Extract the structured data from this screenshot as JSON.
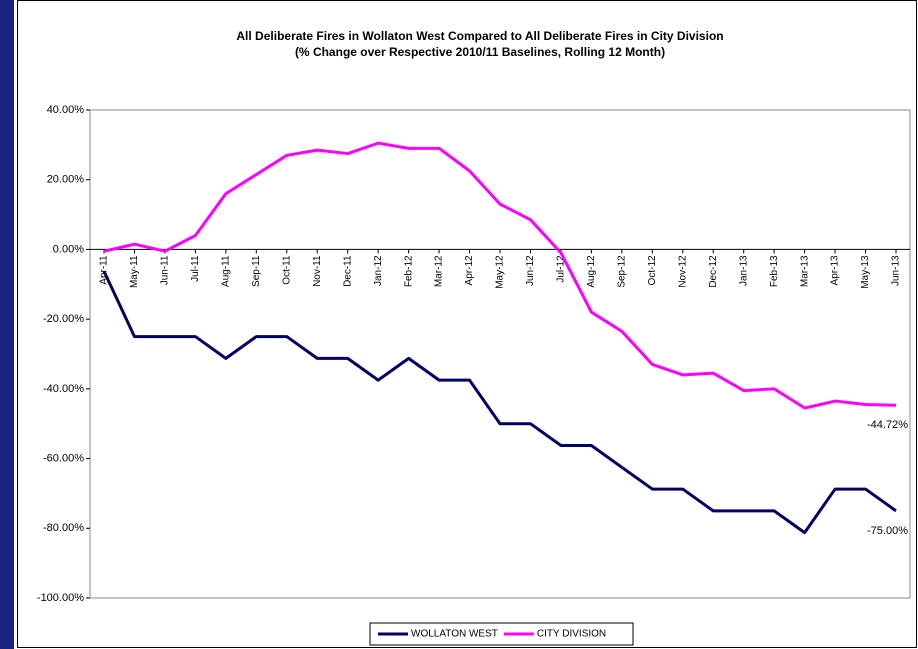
{
  "chart_data": {
    "type": "line",
    "title": "All Deliberate Fires in Wollaton West Compared to All Deliberate Fires in City Division",
    "subtitle": "(% Change over Respective 2010/11 Baselines, Rolling 12 Month)",
    "categories": [
      "Apr-11",
      "May-11",
      "Jun-11",
      "Jul-11",
      "Aug-11",
      "Sep-11",
      "Oct-11",
      "Nov-11",
      "Dec-11",
      "Jan-12",
      "Feb-12",
      "Mar-12",
      "Apr-12",
      "May-12",
      "Jun-12",
      "Jul-12",
      "Aug-12",
      "Sep-12",
      "Oct-12",
      "Nov-12",
      "Dec-12",
      "Jan-13",
      "Feb-13",
      "Mar-13",
      "Apr-13",
      "May-13",
      "Jun-13"
    ],
    "series": [
      {
        "name": "WOLLATON WEST",
        "color": "#000066",
        "values": [
          -6.25,
          -25,
          -25,
          -25,
          -31.25,
          -25,
          -25,
          -31.25,
          -31.25,
          -37.5,
          -31.25,
          -37.5,
          -37.5,
          -50,
          -50,
          -56.25,
          -56.25,
          -62.5,
          -68.75,
          -68.75,
          -75,
          -75,
          -75,
          -81.25,
          -68.75,
          -68.75,
          -75
        ],
        "value_labels": [
          null,
          null,
          null,
          null,
          null,
          null,
          null,
          null,
          null,
          null,
          null,
          null,
          null,
          null,
          null,
          null,
          null,
          null,
          null,
          null,
          null,
          null,
          null,
          null,
          null,
          null,
          "-75.00%"
        ]
      },
      {
        "name": "CITY DIVISION",
        "color": "#ff00ff",
        "values": [
          -0.5,
          1.5,
          -0.5,
          4,
          16,
          21.5,
          27,
          28.5,
          27.5,
          30.5,
          29,
          29,
          22.5,
          13,
          8.5,
          -1,
          -18,
          -23.5,
          -33,
          -36,
          -35.5,
          -40.5,
          -40,
          -45.5,
          -43.5,
          -44.5,
          -44.72
        ],
        "value_labels": [
          null,
          null,
          null,
          null,
          null,
          null,
          null,
          null,
          null,
          null,
          null,
          null,
          null,
          null,
          null,
          null,
          null,
          null,
          null,
          null,
          null,
          null,
          null,
          null,
          null,
          null,
          "-44.72%"
        ]
      }
    ],
    "ylim": [
      -100,
      40
    ],
    "yticks": [
      {
        "value": 40,
        "label": "40.00%"
      },
      {
        "value": 20,
        "label": "20.00%"
      },
      {
        "value": 0,
        "label": "0.00%"
      },
      {
        "value": -20,
        "label": "-20.00%"
      },
      {
        "value": -40,
        "label": "-40.00%"
      },
      {
        "value": -60,
        "label": "-60.00%"
      },
      {
        "value": -80,
        "label": "-80.00%"
      },
      {
        "value": -100,
        "label": "-100.00%"
      }
    ],
    "legend": "bottom"
  }
}
